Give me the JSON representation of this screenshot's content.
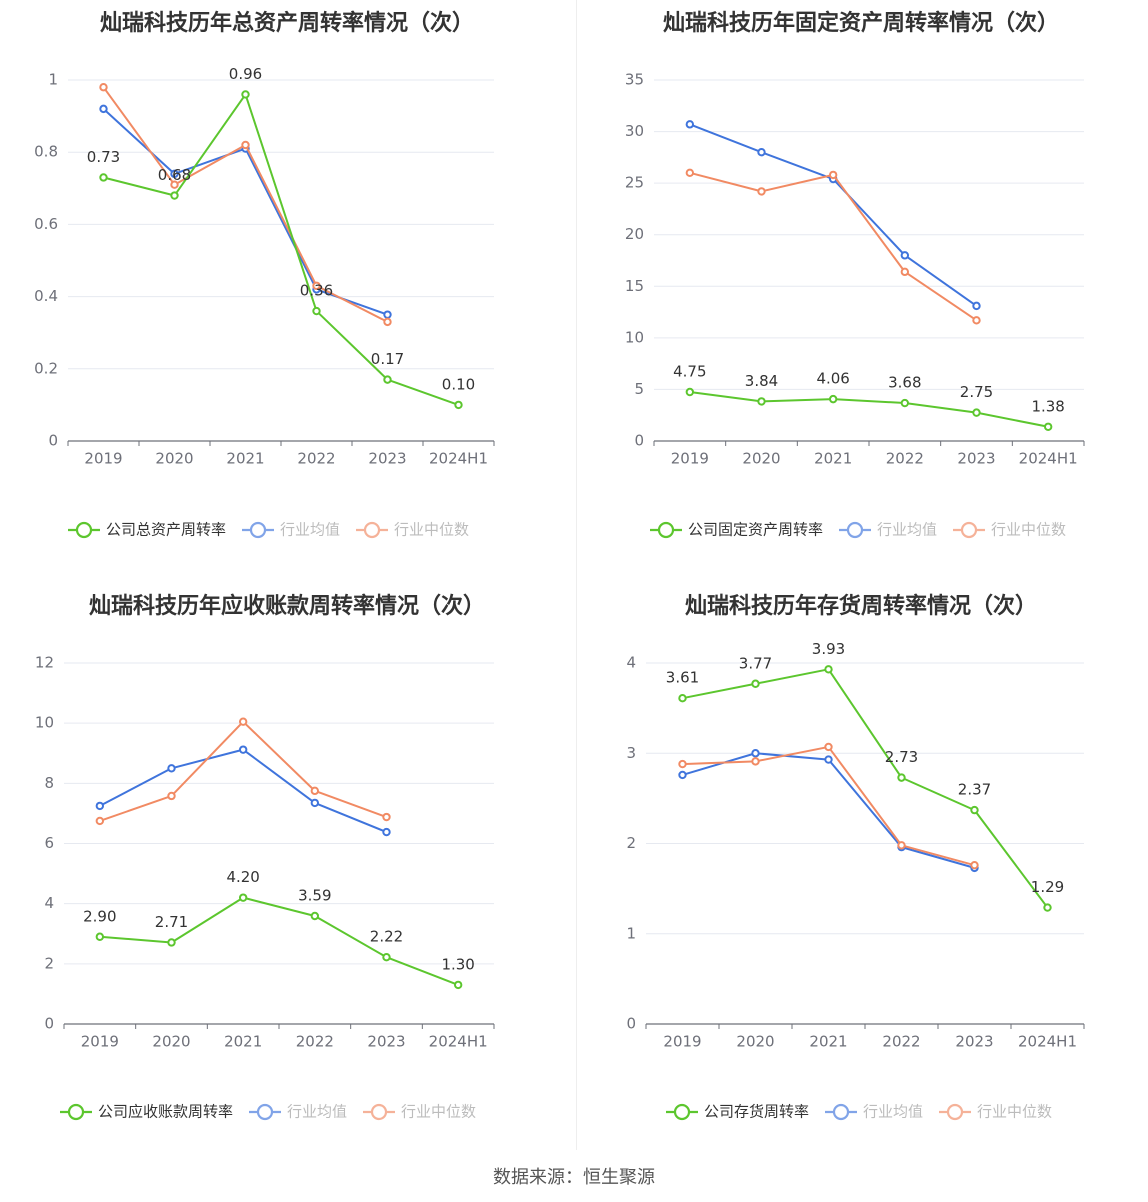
{
  "source": "数据来源：恒生聚源",
  "colors": {
    "company": "#5cc62e",
    "avg": "#3f74dc",
    "median": "#f18a63",
    "grid": "#e6e9f0",
    "axis": "#6e7079",
    "tick": "#6e7079"
  },
  "chart_data": [
    {
      "type": "line",
      "title": "灿瑞科技历年总资产周转率情况（次）",
      "categories": [
        "2019",
        "2020",
        "2021",
        "2022",
        "2023",
        "2024H1"
      ],
      "ylim": [
        0,
        1
      ],
      "yticks": [
        0,
        0.2,
        0.4,
        0.6,
        0.8,
        1
      ],
      "ytick_labels": [
        "0",
        "0.2",
        "0.4",
        "0.6",
        "0.8",
        "1"
      ],
      "series": [
        {
          "name": "公司总资产周转率",
          "role": "company",
          "values": [
            0.73,
            0.68,
            0.96,
            0.36,
            0.17,
            0.1
          ],
          "labels": [
            "0.73",
            "0.68",
            "0.96",
            "0.36",
            "0.17",
            "0.10"
          ]
        },
        {
          "name": "行业均值",
          "role": "avg",
          "values": [
            0.92,
            0.74,
            0.81,
            0.42,
            0.35,
            null
          ]
        },
        {
          "name": "行业中位数",
          "role": "median",
          "values": [
            0.98,
            0.71,
            0.82,
            0.43,
            0.33,
            null
          ]
        }
      ]
    },
    {
      "type": "line",
      "title": "灿瑞科技历年固定资产周转率情况（次）",
      "categories": [
        "2019",
        "2020",
        "2021",
        "2022",
        "2023",
        "2024H1"
      ],
      "ylim": [
        0,
        35
      ],
      "yticks": [
        0,
        5,
        10,
        15,
        20,
        25,
        30,
        35
      ],
      "ytick_labels": [
        "0",
        "5",
        "10",
        "15",
        "20",
        "25",
        "30",
        "35"
      ],
      "series": [
        {
          "name": "公司固定资产周转率",
          "role": "company",
          "values": [
            4.75,
            3.84,
            4.06,
            3.68,
            2.75,
            1.38
          ],
          "labels": [
            "4.75",
            "3.84",
            "4.06",
            "3.68",
            "2.75",
            "1.38"
          ]
        },
        {
          "name": "行业均值",
          "role": "avg",
          "values": [
            30.7,
            28.0,
            25.4,
            18.0,
            13.1,
            null
          ]
        },
        {
          "name": "行业中位数",
          "role": "median",
          "values": [
            26.0,
            24.2,
            25.8,
            16.4,
            11.7,
            null
          ]
        }
      ]
    },
    {
      "type": "line",
      "title": "灿瑞科技历年应收账款周转率情况（次）",
      "categories": [
        "2019",
        "2020",
        "2021",
        "2022",
        "2023",
        "2024H1"
      ],
      "ylim": [
        0,
        12
      ],
      "yticks": [
        0,
        2,
        4,
        6,
        8,
        10,
        12
      ],
      "ytick_labels": [
        "0",
        "2",
        "4",
        "6",
        "8",
        "10",
        "12"
      ],
      "series": [
        {
          "name": "公司应收账款周转率",
          "role": "company",
          "values": [
            2.9,
            2.71,
            4.2,
            3.59,
            2.22,
            1.3
          ],
          "labels": [
            "2.90",
            "2.71",
            "4.20",
            "3.59",
            "2.22",
            "1.30"
          ]
        },
        {
          "name": "行业均值",
          "role": "avg",
          "values": [
            7.25,
            8.5,
            9.12,
            7.35,
            6.38,
            null
          ]
        },
        {
          "name": "行业中位数",
          "role": "median",
          "values": [
            6.75,
            7.58,
            10.05,
            7.75,
            6.88,
            null
          ]
        }
      ]
    },
    {
      "type": "line",
      "title": "灿瑞科技历年存货周转率情况（次）",
      "categories": [
        "2019",
        "2020",
        "2021",
        "2022",
        "2023",
        "2024H1"
      ],
      "ylim": [
        0,
        4
      ],
      "yticks": [
        0,
        1,
        2,
        3,
        4
      ],
      "ytick_labels": [
        "0",
        "1",
        "2",
        "3",
        "4"
      ],
      "series": [
        {
          "name": "公司存货周转率",
          "role": "company",
          "values": [
            3.61,
            3.77,
            3.93,
            2.73,
            2.37,
            1.29
          ],
          "labels": [
            "3.61",
            "3.77",
            "3.93",
            "2.73",
            "2.37",
            "1.29"
          ]
        },
        {
          "name": "行业均值",
          "role": "avg",
          "values": [
            2.76,
            3.0,
            2.93,
            1.96,
            1.73,
            null
          ]
        },
        {
          "name": "行业中位数",
          "role": "median",
          "values": [
            2.88,
            2.91,
            3.07,
            1.98,
            1.76,
            null
          ]
        }
      ]
    }
  ]
}
